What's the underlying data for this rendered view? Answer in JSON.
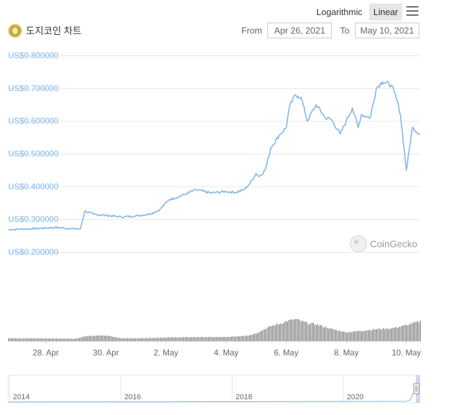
{
  "title": "도지코인 차트",
  "toolbar": {
    "logarithmic_label": "Logarithmic",
    "linear_label": "Linear",
    "active_scale": "linear"
  },
  "range": {
    "from_label": "From",
    "from_value": "Apr 26, 2021",
    "to_label": "To",
    "to_value": "May 10, 2021"
  },
  "watermark": "CoinGecko",
  "colors": {
    "price_line": "#7cb5ec",
    "volume_bars": "#666666",
    "axis_label": "#7cb5ec"
  },
  "chart_data": {
    "type": "line",
    "y_tick_labels": [
      "US$0.800000",
      "US$0.700000",
      "US$0.600000",
      "US$0.500000",
      "US$0.400000",
      "US$0.300000",
      "US$0.200000"
    ],
    "y_tick_values": [
      0.8,
      0.7,
      0.6,
      0.5,
      0.4,
      0.3,
      0.2
    ],
    "ylim": [
      0.2,
      0.8
    ],
    "x_tick_labels": [
      "28. Apr",
      "30. Apr",
      "2. May",
      "4. May",
      "6. May",
      "8. May",
      "10. May"
    ],
    "x_tick_days": [
      2,
      4,
      6,
      8,
      10,
      12,
      14
    ],
    "xlim_days": [
      0.75,
      14.45
    ],
    "series": [
      {
        "x_days": [
          0.75,
          1.2,
          1.8,
          2.3,
          2.8,
          3.15,
          3.3,
          3.6,
          4.0,
          4.5,
          5.0,
          5.5,
          5.8,
          6.1,
          6.3,
          6.6,
          7.0,
          7.5,
          8.0,
          8.3,
          8.6,
          8.8,
          9.0,
          9.1,
          9.3,
          9.5,
          9.8,
          10.0,
          10.1,
          10.3,
          10.4,
          10.5,
          10.7,
          11.0,
          11.3,
          11.5,
          11.8,
          12.0,
          12.2,
          12.4,
          12.5,
          12.8,
          13.0,
          13.2,
          13.5,
          13.7,
          13.8,
          14.0,
          14.2,
          14.45
        ],
        "values": [
          0.268,
          0.27,
          0.272,
          0.275,
          0.272,
          0.27,
          0.325,
          0.315,
          0.312,
          0.307,
          0.31,
          0.317,
          0.33,
          0.36,
          0.365,
          0.375,
          0.39,
          0.38,
          0.385,
          0.382,
          0.39,
          0.41,
          0.44,
          0.43,
          0.45,
          0.52,
          0.56,
          0.58,
          0.64,
          0.68,
          0.675,
          0.672,
          0.6,
          0.65,
          0.61,
          0.605,
          0.56,
          0.6,
          0.64,
          0.58,
          0.62,
          0.61,
          0.7,
          0.72,
          0.71,
          0.66,
          0.62,
          0.45,
          0.58,
          0.56
        ]
      }
    ],
    "volume": {
      "x_days": [
        0.75,
        2.0,
        3.0,
        3.3,
        3.8,
        4.1,
        4.5,
        5.0,
        6.0,
        7.0,
        8.0,
        8.4,
        8.8,
        9.0,
        9.5,
        9.8,
        10.0,
        10.3,
        10.7,
        11.0,
        11.5,
        12.0,
        12.5,
        13.0,
        13.5,
        14.0,
        14.45
      ],
      "values": [
        0.07,
        0.065,
        0.06,
        0.12,
        0.14,
        0.13,
        0.07,
        0.07,
        0.09,
        0.1,
        0.1,
        0.12,
        0.15,
        0.2,
        0.38,
        0.44,
        0.5,
        0.55,
        0.45,
        0.42,
        0.3,
        0.22,
        0.26,
        0.3,
        0.32,
        0.4,
        0.5
      ]
    },
    "navigator_tick_labels": [
      "2014",
      "2016",
      "2018",
      "2020"
    ],
    "grid": true,
    "legend": "none"
  }
}
